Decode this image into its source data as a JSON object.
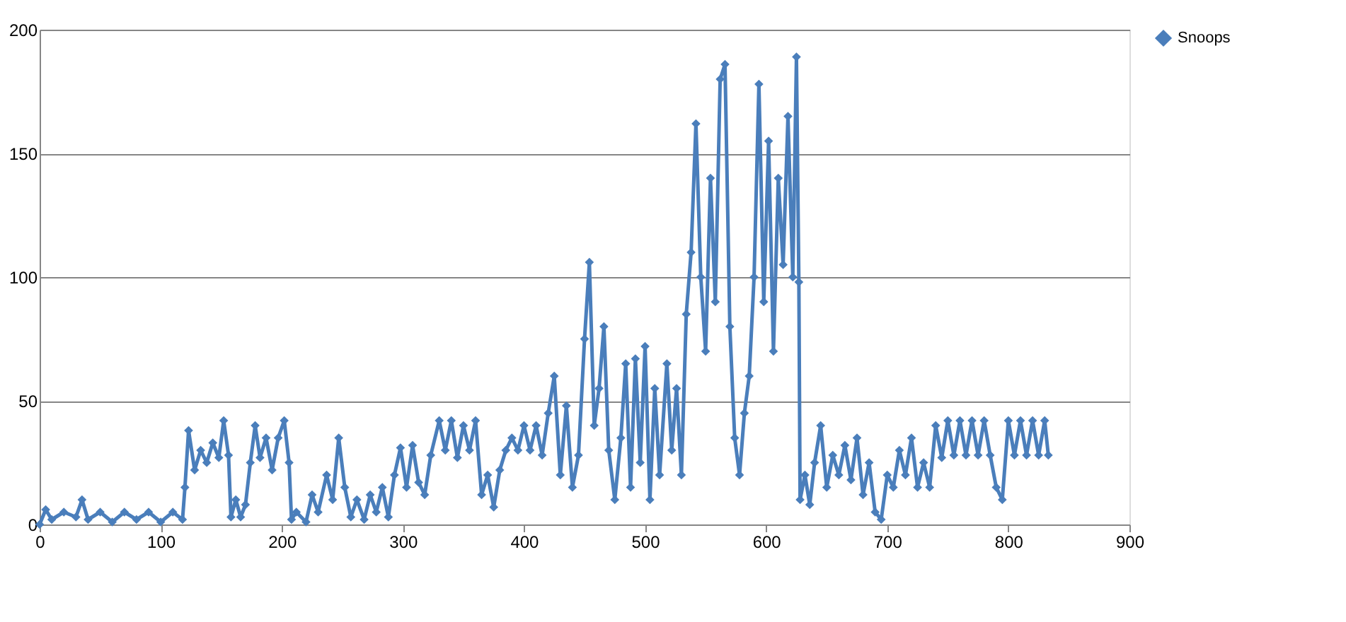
{
  "chart_data": {
    "type": "line",
    "marker": "diamond",
    "line_style": "solid",
    "grid": "y",
    "legend": "right",
    "xlim": [
      0,
      900
    ],
    "ylim": [
      0,
      200
    ],
    "xticks": [
      0,
      100,
      200,
      300,
      400,
      500,
      600,
      700,
      800,
      900
    ],
    "yticks": [
      0,
      50,
      100,
      150,
      200
    ],
    "x": [
      0,
      5,
      10,
      20,
      30,
      35,
      40,
      50,
      60,
      70,
      80,
      90,
      100,
      110,
      118,
      120,
      123,
      128,
      133,
      138,
      143,
      148,
      152,
      156,
      158,
      162,
      166,
      170,
      174,
      178,
      182,
      187,
      192,
      197,
      202,
      206,
      208,
      212,
      220,
      225,
      230,
      237,
      242,
      247,
      252,
      257,
      262,
      268,
      273,
      278,
      283,
      288,
      293,
      298,
      303,
      308,
      313,
      318,
      323,
      330,
      335,
      340,
      345,
      350,
      355,
      360,
      365,
      370,
      375,
      380,
      385,
      390,
      395,
      400,
      405,
      410,
      415,
      420,
      425,
      430,
      435,
      440,
      445,
      450,
      454,
      458,
      462,
      466,
      470,
      475,
      480,
      484,
      488,
      492,
      496,
      500,
      504,
      508,
      512,
      518,
      522,
      526,
      530,
      534,
      538,
      542,
      546,
      550,
      554,
      558,
      562,
      566,
      570,
      574,
      578,
      582,
      586,
      590,
      594,
      598,
      602,
      606,
      610,
      614,
      618,
      622,
      625,
      627,
      628,
      632,
      636,
      640,
      645,
      650,
      655,
      660,
      665,
      670,
      675,
      680,
      685,
      690,
      695,
      700,
      705,
      710,
      715,
      720,
      725,
      730,
      735,
      740,
      745,
      750,
      755,
      760,
      765,
      770,
      775,
      780,
      785,
      790,
      795,
      800,
      805,
      810,
      815,
      820,
      825,
      830,
      833
    ],
    "series": [
      {
        "name": "Snoops",
        "color": "#4a7ebb",
        "values": [
          0,
          6,
          2,
          5,
          3,
          10,
          2,
          5,
          1,
          5,
          2,
          5,
          1,
          5,
          2,
          15,
          38,
          22,
          30,
          25,
          33,
          27,
          42,
          28,
          3,
          10,
          3,
          8,
          25,
          40,
          27,
          35,
          22,
          35,
          42,
          25,
          2,
          5,
          1,
          12,
          5,
          20,
          10,
          35,
          15,
          3,
          10,
          2,
          12,
          5,
          15,
          3,
          20,
          31,
          15,
          32,
          17,
          12,
          28,
          42,
          30,
          42,
          27,
          40,
          30,
          42,
          12,
          20,
          7,
          22,
          30,
          35,
          30,
          40,
          30,
          40,
          28,
          45,
          60,
          20,
          48,
          15,
          28,
          75,
          106,
          40,
          55,
          80,
          30,
          10,
          35,
          65,
          15,
          67,
          25,
          72,
          10,
          55,
          20,
          65,
          30,
          55,
          20,
          85,
          110,
          162,
          100,
          70,
          140,
          90,
          180,
          186,
          80,
          35,
          20,
          45,
          60,
          100,
          178,
          90,
          155,
          70,
          140,
          105,
          165,
          100,
          189,
          98,
          10,
          20,
          8,
          25,
          40,
          15,
          28,
          20,
          32,
          18,
          35,
          12,
          25,
          5,
          2,
          20,
          15,
          30,
          20,
          35,
          15,
          25,
          15,
          40,
          27,
          42,
          28,
          42,
          28,
          42,
          28,
          42,
          28,
          15,
          10,
          42,
          28,
          42,
          28,
          42,
          28,
          42,
          28
        ]
      }
    ]
  }
}
